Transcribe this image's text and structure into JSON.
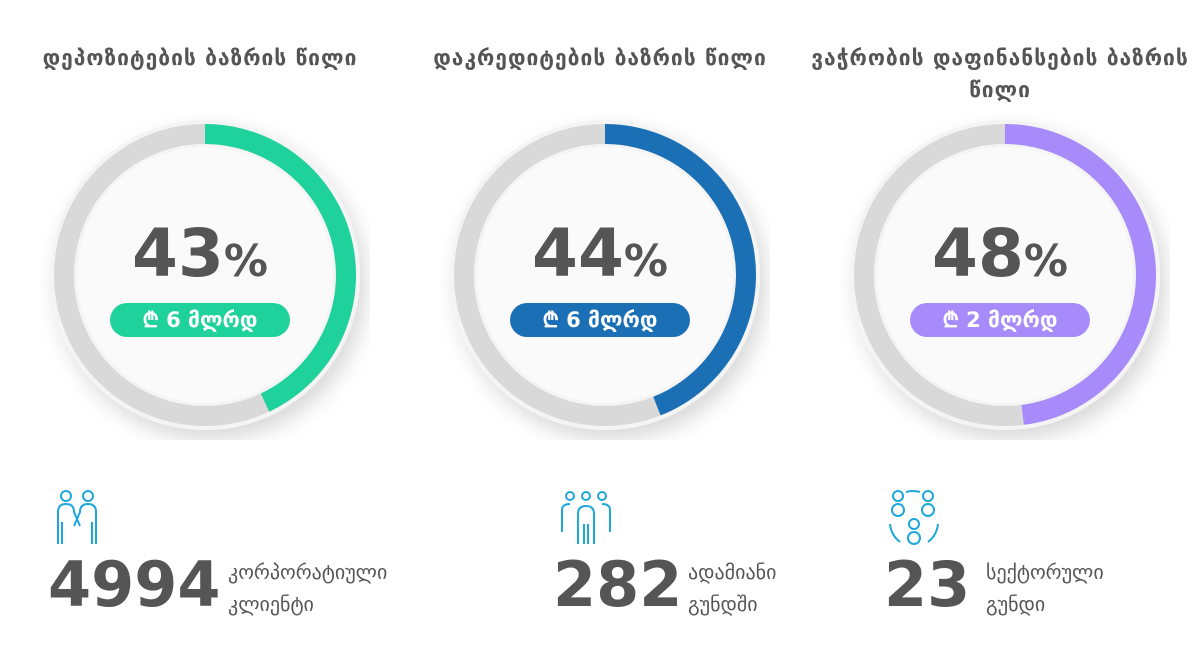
{
  "colors": {
    "track": "#d9d9d9",
    "text": "#555555",
    "icon": "#1ea7d9"
  },
  "chart_data": {
    "type": "pie",
    "variant": "donut-gauges",
    "items": [
      {
        "title": "დეპოზიტების ბაზრის წილი",
        "value": 43,
        "value_label": "43",
        "unit": "%",
        "amount": "₾ 6 მლრდ",
        "color": "#1fd19b"
      },
      {
        "title": "დაკრედიტების ბაზრის წილი",
        "value": 44,
        "value_label": "44",
        "unit": "%",
        "amount": "₾ 6 მლრდ",
        "color": "#1b6fb5"
      },
      {
        "title": "ვაჭრობის დაფინანსების ბაზრის წილი",
        "value": 48,
        "value_label": "48",
        "unit": "%",
        "amount": "₾ 2 მლრდ",
        "color": "#a78bfa"
      }
    ]
  },
  "stats": [
    {
      "icon": "handshake-people-icon",
      "number": "4994",
      "label_line1": "კორპორატიული",
      "label_line2": "კლიენტი"
    },
    {
      "icon": "group-people-icon",
      "number": "282",
      "label_line1": "ადამიანი",
      "label_line2": "გუნდში"
    },
    {
      "icon": "network-people-icon",
      "number": "23",
      "label_line1": "სექტორული",
      "label_line2": "გუნდი"
    }
  ]
}
